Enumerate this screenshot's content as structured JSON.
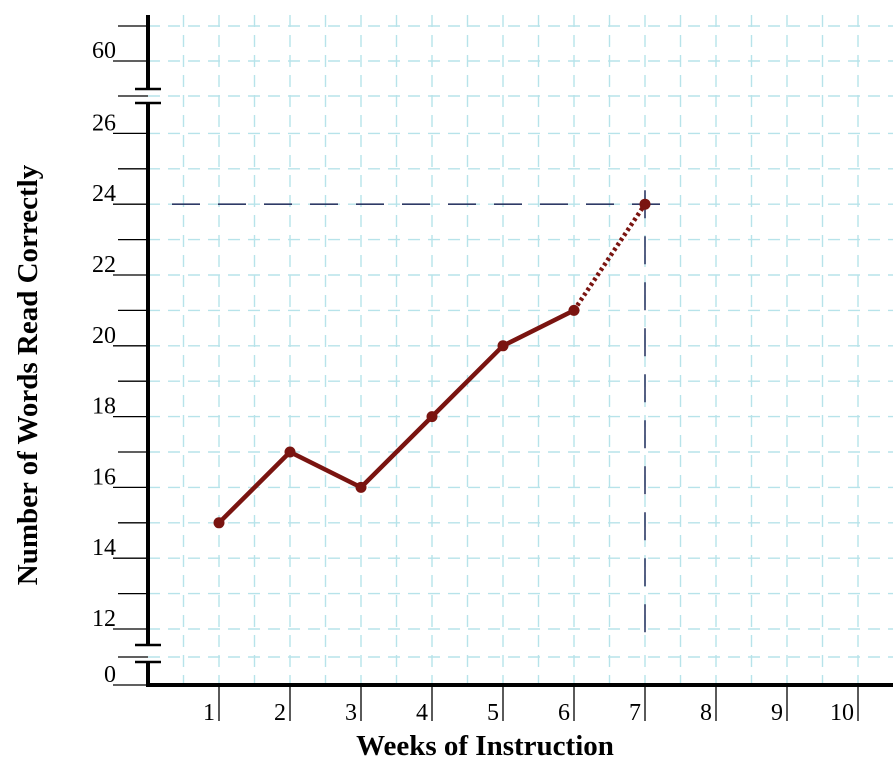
{
  "chart_data": {
    "type": "line",
    "xlabel": "Weeks of Instruction",
    "ylabel": "Number of Words Read Correctly",
    "x_ticks": [
      "1",
      "2",
      "3",
      "4",
      "5",
      "6",
      "7",
      "8",
      "9",
      "10"
    ],
    "y_ticks": [
      "0",
      "12",
      "14",
      "16",
      "18",
      "20",
      "22",
      "24",
      "26",
      "60"
    ],
    "xlim": [
      0,
      10
    ],
    "y_axis_breaks": [
      "between 0 and 12",
      "between 26 and 60"
    ],
    "grid": true,
    "series": [
      {
        "style": "solid",
        "x": [
          1,
          2,
          3,
          4,
          5,
          6
        ],
        "y": [
          15,
          17,
          16,
          18,
          20,
          21
        ]
      },
      {
        "style": "dotted",
        "x": [
          6,
          7
        ],
        "y": [
          21,
          24
        ]
      }
    ],
    "reference_lines": [
      {
        "orientation": "horizontal",
        "value": 24,
        "style": "dashed"
      },
      {
        "orientation": "vertical",
        "value": 7,
        "style": "dashed"
      }
    ],
    "colors": {
      "series": "#7a1410",
      "grid": "#b7e3ea",
      "reference": "#2e3a66",
      "axis": "#000000"
    }
  }
}
